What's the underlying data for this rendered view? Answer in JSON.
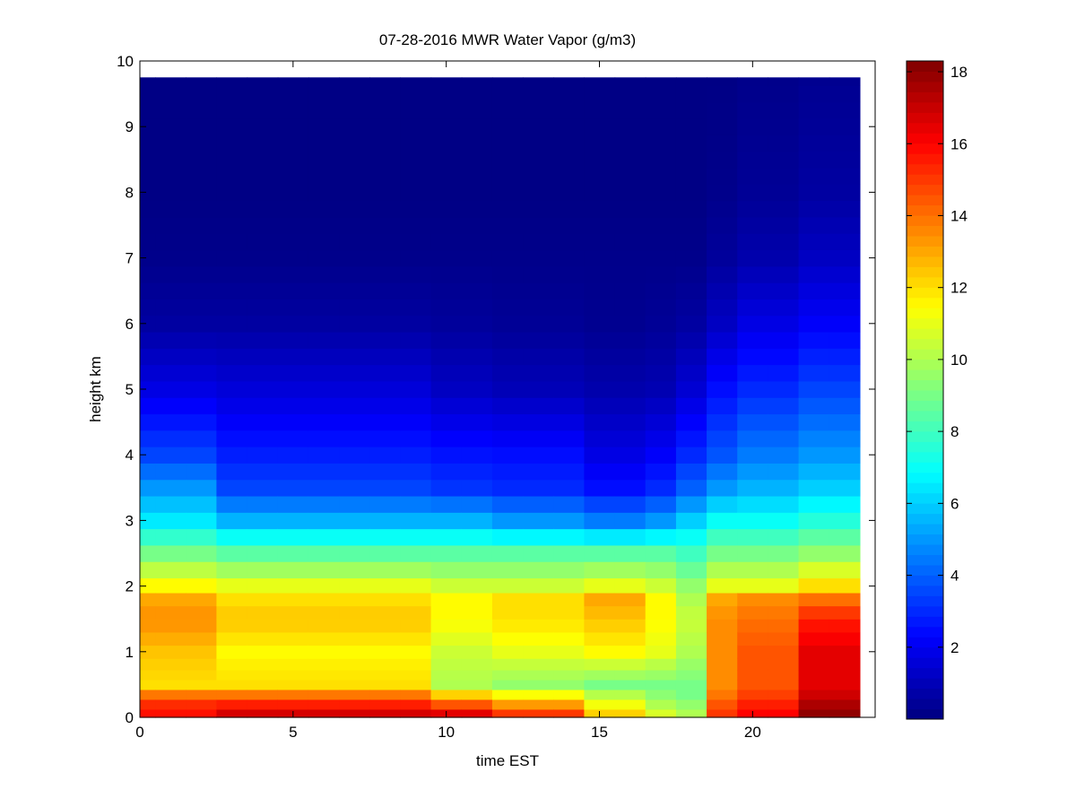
{
  "chart_data": {
    "type": "heatmap",
    "title": "07-28-2016 MWR Water Vapor (g/m3)",
    "xlabel": "time EST",
    "ylabel": "height km",
    "xlim": [
      0,
      24
    ],
    "ylim": [
      0,
      10
    ],
    "x_ticks": [
      "0",
      "5",
      "10",
      "15",
      "20"
    ],
    "y_ticks": [
      "0",
      "1",
      "2",
      "3",
      "4",
      "5",
      "6",
      "7",
      "8",
      "9",
      "10"
    ],
    "colorbar": {
      "colormap": "jet",
      "range": [
        0,
        18.3
      ],
      "ticks": [
        "2",
        "4",
        "6",
        "8",
        "10",
        "12",
        "14",
        "16",
        "18"
      ]
    },
    "grid": false,
    "time_hours": [
      0,
      1,
      2,
      3,
      4,
      5,
      6,
      7,
      8,
      9,
      10,
      11,
      12,
      13,
      14,
      15,
      16,
      17,
      18,
      19,
      20,
      21,
      22,
      23
    ],
    "heights_km": [
      0.05,
      0.2,
      0.35,
      0.5,
      0.65,
      0.8,
      1.0,
      1.2,
      1.4,
      1.6,
      1.8,
      2.0,
      2.25,
      2.5,
      2.75,
      3.0,
      3.25,
      3.5,
      3.75,
      4.0,
      4.25,
      4.5,
      4.75,
      5.0,
      5.25,
      5.5,
      5.75,
      6.0,
      6.25,
      6.5,
      6.75,
      7.0,
      7.25,
      7.5,
      7.75,
      8.0,
      8.25,
      8.5,
      8.75,
      9.0,
      9.25,
      9.5,
      9.75
    ],
    "profile_anchors_km": [
      0,
      0.1,
      0.3,
      0.5,
      1.0,
      1.5,
      1.8,
      2.0,
      2.5,
      3.0,
      3.5,
      4.0,
      5.0,
      6.0,
      7.0,
      8.0,
      9.75
    ],
    "vapor_profiles": [
      {
        "hours": [
          0,
          2
        ],
        "values": [
          15.5,
          16.0,
          14.5,
          12.0,
          12.5,
          13.5,
          13.0,
          11.5,
          9.0,
          6.5,
          5.0,
          3.5,
          1.8,
          0.6,
          0.2,
          0.1,
          0.1
        ]
      },
      {
        "hours": [
          3,
          9
        ],
        "values": [
          17.0,
          16.5,
          14.5,
          12.0,
          11.5,
          12.5,
          12.0,
          11.0,
          8.5,
          5.5,
          3.5,
          2.8,
          1.6,
          0.6,
          0.2,
          0.1,
          0.1
        ]
      },
      {
        "hours": [
          10,
          11
        ],
        "values": [
          17.0,
          16.0,
          13.0,
          10.0,
          10.5,
          11.5,
          11.5,
          10.5,
          8.5,
          5.5,
          3.2,
          2.6,
          1.2,
          0.5,
          0.2,
          0.1,
          0.1
        ]
      },
      {
        "hours": [
          12,
          14
        ],
        "values": [
          15.5,
          14.5,
          12.0,
          9.5,
          11.0,
          12.0,
          12.0,
          10.5,
          8.5,
          5.0,
          3.0,
          2.5,
          1.0,
          0.4,
          0.2,
          0.1,
          0.1
        ]
      },
      {
        "hours": [
          15,
          16
        ],
        "values": [
          12.5,
          12.0,
          10.5,
          9.0,
          11.5,
          12.5,
          13.0,
          11.0,
          8.5,
          4.5,
          2.5,
          1.8,
          0.8,
          0.3,
          0.2,
          0.1,
          0.1
        ]
      },
      {
        "hours": [
          17,
          17
        ],
        "values": [
          11.0,
          10.5,
          9.5,
          9.0,
          11.0,
          11.5,
          11.5,
          10.5,
          8.5,
          5.0,
          3.0,
          2.2,
          0.9,
          0.4,
          0.2,
          0.1,
          0.1
        ]
      },
      {
        "hours": [
          18,
          18
        ],
        "values": [
          10.0,
          10.0,
          9.0,
          9.0,
          10.0,
          10.5,
          10.0,
          9.5,
          8.0,
          6.0,
          4.0,
          3.0,
          1.5,
          0.6,
          0.2,
          0.1,
          0.1
        ]
      },
      {
        "hours": [
          19,
          19
        ],
        "values": [
          15.0,
          15.0,
          14.0,
          13.5,
          13.5,
          13.5,
          13.0,
          11.0,
          9.0,
          7.0,
          5.0,
          3.8,
          2.5,
          1.2,
          0.5,
          0.2,
          0.1
        ]
      },
      {
        "hours": [
          20,
          21
        ],
        "values": [
          16.0,
          16.0,
          15.0,
          14.5,
          14.5,
          14.0,
          13.5,
          11.0,
          9.0,
          7.0,
          5.5,
          4.5,
          3.0,
          1.8,
          0.8,
          0.4,
          0.2
        ]
      },
      {
        "hours": [
          22,
          23
        ],
        "values": [
          18.0,
          18.0,
          17.0,
          16.5,
          16.5,
          15.5,
          14.0,
          12.0,
          9.5,
          7.5,
          6.0,
          5.0,
          3.5,
          2.2,
          1.2,
          0.6,
          0.3
        ]
      }
    ]
  }
}
